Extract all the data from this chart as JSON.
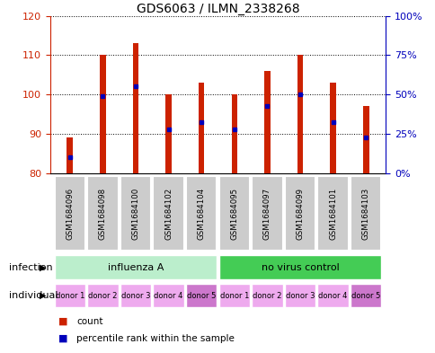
{
  "title": "GDS6063 / ILMN_2338268",
  "samples": [
    "GSM1684096",
    "GSM1684098",
    "GSM1684100",
    "GSM1684102",
    "GSM1684104",
    "GSM1684095",
    "GSM1684097",
    "GSM1684099",
    "GSM1684101",
    "GSM1684103"
  ],
  "bar_tops": [
    89,
    110,
    113,
    100,
    103,
    100,
    106,
    110,
    103,
    97
  ],
  "bar_bottom": 80,
  "blue_values": [
    84,
    99.5,
    102,
    91,
    93,
    91,
    97,
    100,
    93,
    89
  ],
  "ylim_left": [
    80,
    120
  ],
  "ylim_right": [
    0,
    100
  ],
  "yticks_left": [
    80,
    90,
    100,
    110,
    120
  ],
  "yticks_right": [
    0,
    25,
    50,
    75,
    100
  ],
  "yticklabels_right": [
    "0%",
    "25%",
    "50%",
    "75%",
    "100%"
  ],
  "bar_color": "#cc2200",
  "blue_color": "#0000bb",
  "left_tick_color": "#cc2200",
  "right_tick_color": "#0000bb",
  "infection_groups": [
    {
      "label": "influenza A",
      "start": 0,
      "end": 5,
      "color": "#bbeecc"
    },
    {
      "label": "no virus control",
      "start": 5,
      "end": 10,
      "color": "#44cc55"
    }
  ],
  "individuals": [
    "donor 1",
    "donor 2",
    "donor 3",
    "donor 4",
    "donor 5",
    "donor 1",
    "donor 2",
    "donor 3",
    "donor 4",
    "donor 5"
  ],
  "individual_colors": [
    "#eeaaee",
    "#eeaaee",
    "#eeaaee",
    "#eeaaee",
    "#cc77cc",
    "#eeaaee",
    "#eeaaee",
    "#eeaaee",
    "#eeaaee",
    "#cc77cc"
  ],
  "infection_label": "infection",
  "individual_label": "individual",
  "legend_count_color": "#cc2200",
  "legend_percentile_color": "#0000bb",
  "sample_label_bg": "#cccccc",
  "bar_width": 0.18
}
